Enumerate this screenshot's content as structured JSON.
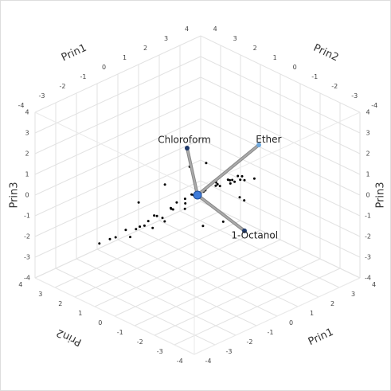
{
  "chart_data": {
    "type": "scatter3d",
    "x_label": "Prin1",
    "y_label": "Prin2",
    "z_label": "Prin3",
    "xlim": [
      -4,
      4
    ],
    "ylim": [
      -4,
      4
    ],
    "zlim": [
      -4,
      4
    ],
    "xticks": [
      -4,
      -3,
      -2,
      -1,
      0,
      1,
      2,
      3,
      4
    ],
    "yticks": [
      -4,
      -3,
      -2,
      -1,
      0,
      1,
      2,
      3,
      4
    ],
    "zticks": [
      -4,
      -3,
      -2,
      -1,
      0,
      1,
      2,
      3,
      4
    ],
    "grid": true,
    "color": "#000000",
    "x": [
      -3.2,
      -2.8,
      -2.5,
      -2.2,
      -2.0,
      -1.8,
      -1.6,
      -1.5,
      -1.3,
      -1.2,
      -1.0,
      -0.9,
      -0.8,
      -0.7,
      -0.6,
      -0.5,
      -0.4,
      -0.3,
      -0.2,
      -0.1,
      0.0,
      0.1,
      0.2,
      0.3,
      0.4,
      0.5,
      0.6,
      0.7,
      0.8,
      0.9,
      1.0,
      1.1,
      1.2,
      1.3,
      1.4,
      1.5,
      -2.4,
      -1.9,
      -1.1,
      -0.6,
      0.2,
      0.9,
      1.6,
      -0.2,
      0.5,
      -1.4,
      -2.6,
      0.7,
      1.2,
      -0.9
    ],
    "y": [
      1.6,
      1.2,
      1.8,
      0.8,
      1.3,
      0.6,
      1.0,
      0.2,
      0.9,
      0.4,
      0.3,
      1.1,
      -0.2,
      0.5,
      0.0,
      0.8,
      -0.4,
      0.3,
      -0.6,
      0.1,
      -0.3,
      0.4,
      -0.8,
      -0.1,
      -0.5,
      0.2,
      -1.0,
      -0.4,
      -0.7,
      0.0,
      -1.2,
      -0.6,
      -0.9,
      -0.3,
      -1.4,
      -0.8,
      0.4,
      0.2,
      -0.1,
      -0.9,
      0.6,
      0.5,
      -0.2,
      -1.5,
      -1.6,
      1.5,
      0.9,
      -1.3,
      -1.1,
      0.7
    ],
    "z": [
      -1.6,
      -1.3,
      -1.8,
      -1.0,
      -1.7,
      -0.7,
      -1.2,
      -0.5,
      -1.4,
      -0.9,
      -0.3,
      -1.1,
      -0.2,
      -0.6,
      0.1,
      -0.8,
      0.4,
      -0.4,
      0.6,
      0.0,
      0.3,
      -0.2,
      0.8,
      0.2,
      0.5,
      -0.1,
      0.9,
      0.3,
      0.7,
      0.2,
      1.0,
      0.5,
      0.6,
      0.1,
      0.8,
      0.4,
      -0.6,
      -0.2,
      0.2,
      -0.8,
      1.0,
      0.9,
      0.0,
      -0.5,
      0.4,
      -0.4,
      -0.9,
      1.2,
      -0.3,
      0.6
    ],
    "rays": [
      {
        "name": "Chloroform",
        "x": -0.5,
        "y": 0,
        "z": 2.5
      },
      {
        "name": "Ether",
        "x": 2,
        "y": -1,
        "z": 1.96
      },
      {
        "name": "1-Octanol",
        "x": 1.5,
        "y": -0.8,
        "z": -2.05
      }
    ]
  }
}
